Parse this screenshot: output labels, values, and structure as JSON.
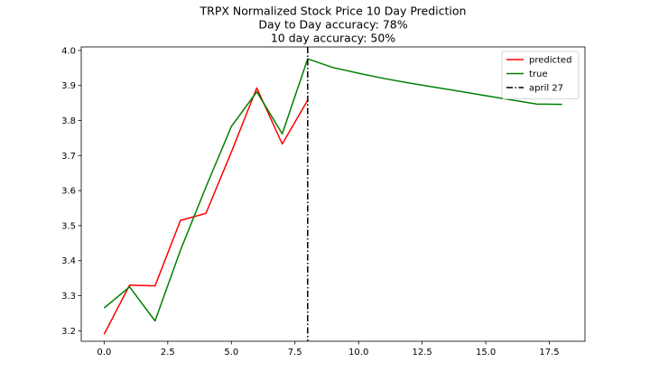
{
  "chart_data": {
    "type": "line",
    "title_lines": [
      "TRPX Normalized Stock Price 10 Day Prediction",
      "Day to Day accuracy: 78%",
      "10 day accuracy: 50%"
    ],
    "xlabel": "",
    "ylabel": "",
    "xlim": [
      -0.9,
      18.9
    ],
    "ylim": [
      3.17,
      4.01
    ],
    "xticks": [
      0.0,
      2.5,
      5.0,
      7.5,
      10.0,
      12.5,
      15.0,
      17.5
    ],
    "xtick_labels": [
      "0.0",
      "2.5",
      "5.0",
      "7.5",
      "10.0",
      "12.5",
      "15.0",
      "17.5"
    ],
    "yticks": [
      3.2,
      3.3,
      3.4,
      3.5,
      3.6,
      3.7,
      3.8,
      3.9,
      4.0
    ],
    "ytick_labels": [
      "3.2",
      "3.3",
      "3.4",
      "3.5",
      "3.6",
      "3.7",
      "3.8",
      "3.9",
      "4.0"
    ],
    "grid": false,
    "legend_position": "top-right",
    "series": [
      {
        "name": "predicted",
        "color": "#ff0000",
        "style": "solid",
        "x": [
          0,
          1,
          2,
          3,
          4,
          5,
          6,
          7,
          8
        ],
        "y": [
          3.19,
          3.33,
          3.328,
          3.515,
          3.535,
          3.71,
          3.893,
          3.733,
          3.858
        ]
      },
      {
        "name": "true",
        "color": "#008000",
        "style": "solid",
        "x": [
          0,
          1,
          2,
          3,
          4,
          5,
          6,
          7,
          8,
          9,
          10,
          11,
          12,
          13,
          14,
          15,
          16,
          17,
          18
        ],
        "y": [
          3.265,
          3.325,
          3.228,
          3.43,
          3.61,
          3.783,
          3.882,
          3.762,
          3.976,
          3.951,
          3.935,
          3.92,
          3.907,
          3.895,
          3.883,
          3.871,
          3.859,
          3.847,
          3.846
        ]
      }
    ],
    "vlines": [
      {
        "name": "april 27",
        "x": 8,
        "color": "#000000",
        "style": "dashdot"
      }
    ]
  }
}
